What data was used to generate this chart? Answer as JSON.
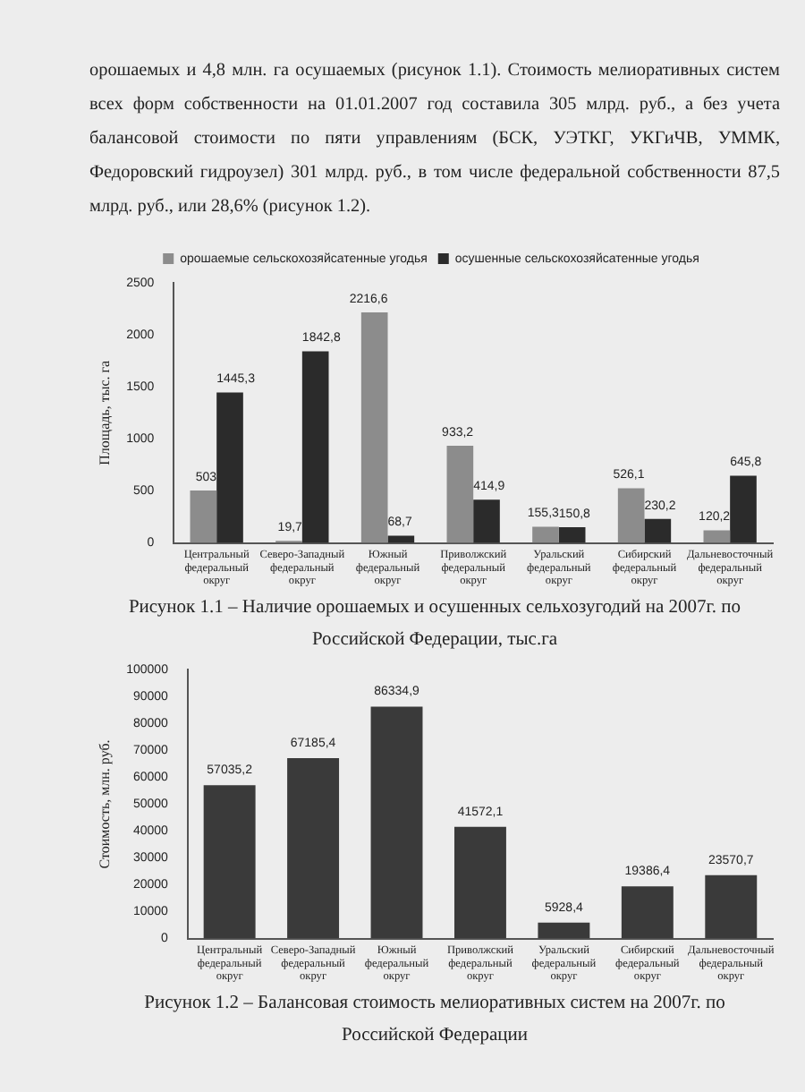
{
  "chart_data": [
    {
      "type": "bar",
      "title": "Рисунок 1.1 – Наличие орошаемых и осушенных сельхозугодий на 2007г. по Российской Федерации, тыс.га",
      "ylabel": "Площадь, тыс. га",
      "annotations": [
        "орошаемых и 4,8 млн. га осушаемых (рисунок 1.1). Стоимость мелиоративных систем всех форм собственности на 01.01.2007 год составила 305 млрд. руб., а без учета балансовой стоимости по пяти управлениям (БСК, УЭТКГ, УКГиЧВ, УММК, Федоровский гидроузел) 301 млрд. руб., в том числе федеральной собственности 87,5 млрд. руб., или 28,6% (рисунок 1.2)."
      ],
      "categories": [
        "Центральный федеральный округ",
        "Северо-Западный федеральный округ",
        "Южный федеральный округ",
        "Приволжский федеральный округ",
        "Уральский федеральный округ",
        "Сибирский федеральный округ",
        "Дальневосточный федеральный округ"
      ],
      "series": [
        {
          "name": "орошаемые сельскохозяйсатенные угодья",
          "color": "#8c8c8c",
          "values": [
            503,
            19.7,
            2216.6,
            933.2,
            155.3,
            526.1,
            120.2
          ],
          "value_labels": [
            "503",
            "19,7",
            "2216,6",
            "933,2",
            "155,3",
            "526,1",
            "120,2"
          ]
        },
        {
          "name": "осушенные сельскохозяйсатенные угодья",
          "color": "#2b2b2b",
          "values": [
            1445.3,
            1842.8,
            68.7,
            414.9,
            150.8,
            230.2,
            645.8
          ],
          "value_labels": [
            "1445,3",
            "1842,8",
            "68,7",
            "414,9",
            "150,8",
            "230,2",
            "645,8"
          ]
        }
      ],
      "ylim": [
        0,
        2500
      ],
      "yticks": [
        0,
        500,
        1000,
        1500,
        2000,
        2500
      ],
      "legend": "top"
    },
    {
      "type": "bar",
      "title": "Рисунок 1.2 – Балансовая стоимость мелиоративных систем на 2007г. по Российской Федерации",
      "ylabel": "Стоимость, млн. руб.",
      "categories": [
        "Центральный федеральный округ",
        "Северо-Западный федеральный округ",
        "Южный федеральный округ",
        "Приволжский федеральный округ",
        "Уральский федеральный округ",
        "Сибирский федеральный округ",
        "Дальневосточный федеральный округ"
      ],
      "values": [
        57035.2,
        67185.4,
        86334.9,
        41572.1,
        5928.4,
        19386.4,
        23570.7
      ],
      "value_labels": [
        "57035,2",
        "67185,4",
        "86334,9",
        "41572,1",
        "5928,4",
        "19386,4",
        "23570,7"
      ],
      "color": "#3a3a3a",
      "ylim": [
        0,
        100000
      ],
      "yticks": [
        0,
        10000,
        20000,
        30000,
        40000,
        50000,
        60000,
        70000,
        80000,
        90000,
        100000
      ]
    }
  ]
}
